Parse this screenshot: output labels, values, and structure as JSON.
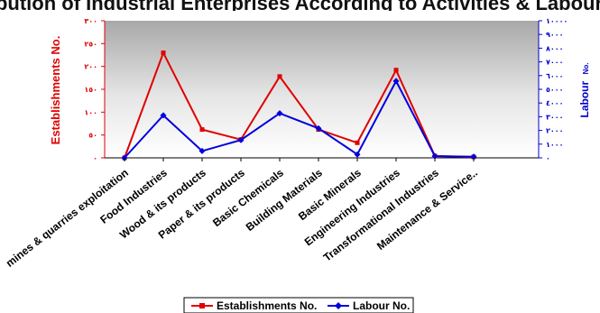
{
  "chart_data": {
    "type": "line",
    "title": "Distribution of Industrial Enterprises According to Activities & Labour Number",
    "categories": [
      "mines & quarries exploitation",
      "Food Industries",
      "Wood & its products",
      "Paper & its products",
      "Basic Chemicals",
      "Building Materials",
      "Basic Minerals",
      "Engineering Industries",
      "Transformational Industries",
      "Maintenance & Service.."
    ],
    "ylabel": "Establishments No.",
    "ylabel2": "Labour",
    "ylabel2_suffix": "No.",
    "ylim": [
      0,
      300
    ],
    "ylim2": [
      0,
      10000
    ],
    "yticks": [
      "٠",
      "٥٠",
      "١٠٠",
      "١٥٠",
      "٢٠٠",
      "٢٥٠",
      "٣٠٠"
    ],
    "yticks2": [
      "٠",
      "١٠٠٠",
      "٢٠٠٠",
      "٣٠٠٠",
      "٤٠٠٠",
      "٥٠٠٠",
      "٦٠٠٠",
      "٧٠٠٠",
      "٨٠٠٠",
      "٩٠٠٠",
      "١٠٠٠٠"
    ],
    "series": [
      {
        "name": "Establishments No.",
        "axis": "left",
        "color": "#e00000",
        "values": [
          0,
          230,
          62,
          40,
          178,
          62,
          33,
          192,
          4,
          2
        ]
      },
      {
        "name": "Labour No.",
        "axis": "right",
        "color": "#0000dd",
        "values": [
          0,
          3100,
          500,
          1300,
          3250,
          2150,
          250,
          5600,
          120,
          80
        ]
      }
    ],
    "legend_position": "bottom",
    "plot_background": "gradient-gray"
  }
}
